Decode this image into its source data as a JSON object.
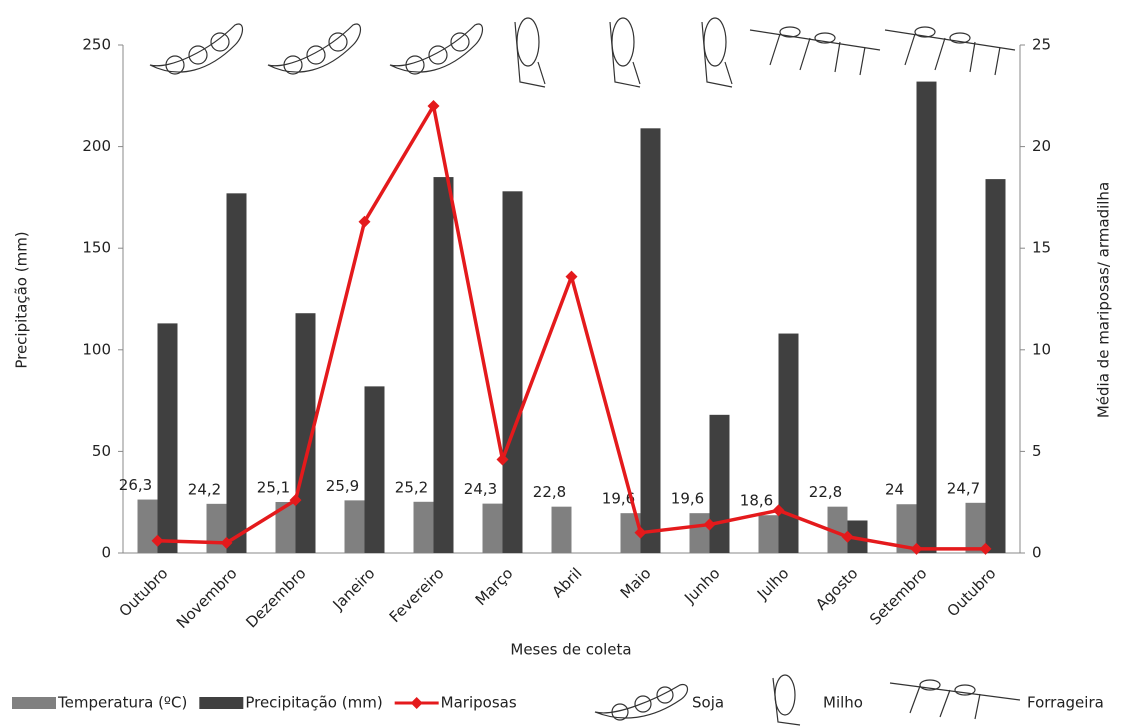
{
  "chart_data": {
    "type": "bar-line",
    "categories": [
      "Outubro",
      "Novembro",
      "Dezembro",
      "Janeiro",
      "Fevereiro",
      "Março",
      "Abril",
      "Maio",
      "Junho",
      "Julho",
      "Agosto",
      "Setembro",
      "Outubro"
    ],
    "series": [
      {
        "name": "Temperatura (ºC)",
        "color": "#808080",
        "type": "bar",
        "values": [
          26.3,
          24.2,
          25.1,
          25.9,
          25.2,
          24.3,
          22.8,
          19.6,
          19.6,
          18.6,
          22.8,
          24,
          24.7
        ],
        "value_labels": [
          "26,3",
          "24,2",
          "25,1",
          "25,9",
          "25,2",
          "24,3",
          "22,8",
          "19,6",
          "19,6",
          "18,6",
          "22,8",
          "24",
          "24,7"
        ]
      },
      {
        "name": "Precipitação (mm)",
        "color": "#404040",
        "type": "bar",
        "values": [
          113,
          177,
          118,
          82,
          185,
          178,
          0,
          209,
          68,
          108,
          16,
          232,
          184
        ]
      },
      {
        "name": "Mariposas",
        "color": "#e41a1c",
        "type": "line",
        "axis": "y2",
        "values": [
          0.6,
          0.5,
          2.6,
          16.3,
          22,
          4.6,
          13.6,
          1.0,
          1.4,
          2.1,
          0.8,
          0.2,
          0.2
        ]
      }
    ],
    "ylabel": "Precipitação (mm)",
    "y2label": "Média de mariposas/ armadilha",
    "xlabel": "Meses de coleta",
    "ylim": [
      0,
      250
    ],
    "yticks": [
      0,
      50,
      100,
      150,
      200,
      250
    ],
    "y2lim": [
      0,
      25
    ],
    "y2ticks": [
      0,
      5,
      10,
      15,
      20,
      25
    ],
    "grid": false,
    "crop_legend": [
      "Soja",
      "Milho",
      "Forrageira"
    ]
  }
}
